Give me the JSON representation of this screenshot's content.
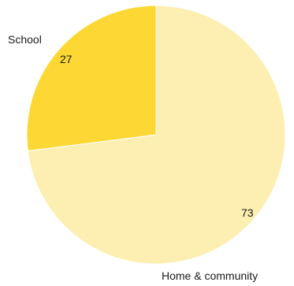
{
  "chart_data": {
    "type": "pie",
    "categories": [
      "Home & community",
      "School"
    ],
    "values": [
      73,
      27
    ],
    "colors": [
      "#fdefb2",
      "#fdd835"
    ],
    "value_labels": [
      "73",
      "27"
    ],
    "title": "",
    "legend": "none"
  }
}
